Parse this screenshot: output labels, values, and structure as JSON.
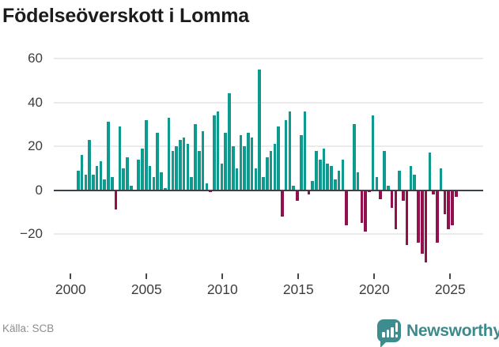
{
  "title": "Födelseöverskott i Lomma",
  "source": "Källa: SCB",
  "brand": {
    "name": "Newsworthy",
    "logo_color": "#3d8c8e",
    "text_color": "#3d898c",
    "logo_icon": "bar-chart-exclamation-speech-bubble"
  },
  "colors": {
    "positive_bar": "#0f9a8f",
    "negative_bar": "#93104f",
    "zero_line": "#3a4248",
    "gridline": "#ebebeb",
    "title_text": "#1c1c1c",
    "axis_text": "#3e3e3e",
    "source_text": "#8d8d8d"
  },
  "chart_data": {
    "type": "bar",
    "title": "Födelseöverskott i Lomma",
    "frequency": "quarterly",
    "start_period": "2000 Q2",
    "end_period": "2025 Q2",
    "x_tick_labels": [
      "2000",
      "2005",
      "2010",
      "2015",
      "2020",
      "2025"
    ],
    "y_tick_labels": [
      "60",
      "40",
      "20",
      "0",
      "−20"
    ],
    "y_ticks": [
      60,
      40,
      20,
      0,
      -20
    ],
    "ylim": [
      -38,
      64
    ],
    "grid": "horizontal",
    "legend": "none",
    "values": [
      9,
      16,
      7,
      23,
      7,
      11,
      13,
      5,
      31,
      6,
      -9,
      29,
      10,
      15,
      2,
      0,
      14,
      19,
      32,
      11,
      6,
      26,
      8,
      1,
      33,
      18,
      20,
      23,
      24,
      21,
      6,
      30,
      18,
      27,
      3,
      -1,
      34,
      36,
      12,
      26,
      44,
      20,
      10,
      25,
      20,
      26,
      24,
      10,
      55,
      6,
      15,
      18,
      21,
      29,
      -12,
      32,
      36,
      2,
      -5,
      25,
      36,
      -2,
      4,
      18,
      14,
      19,
      12,
      11,
      5,
      9,
      14,
      -16,
      0,
      30,
      8,
      -15,
      -19,
      -1,
      34,
      6,
      -4,
      18,
      2,
      -8,
      -18,
      9,
      -5,
      -25,
      11,
      7,
      -24,
      -29,
      -33,
      17,
      -2,
      -24,
      10,
      -11,
      -18,
      -16,
      -3
    ]
  }
}
